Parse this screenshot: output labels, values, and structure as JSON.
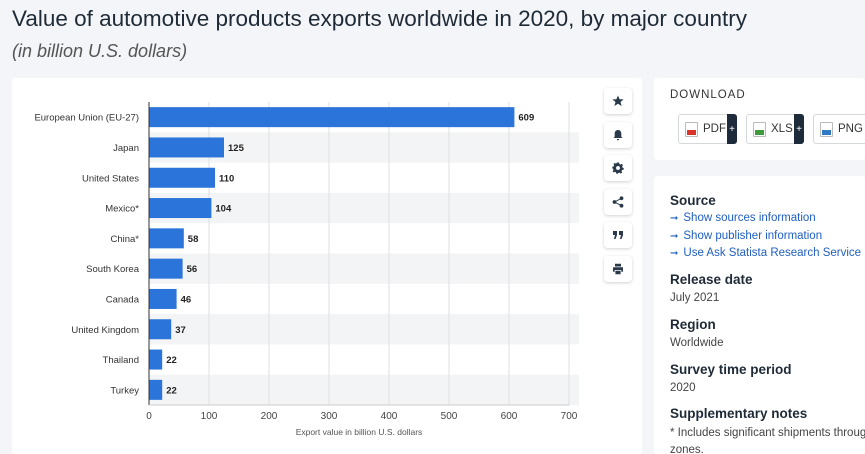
{
  "header": {
    "title": "Value of automotive products exports worldwide in 2020, by major country",
    "subtitle": "(in billion U.S. dollars)"
  },
  "chart_data": {
    "type": "bar",
    "orientation": "horizontal",
    "categories": [
      "European Union (EU-27)",
      "Japan",
      "United States",
      "Mexico*",
      "China*",
      "South Korea",
      "Canada",
      "United Kingdom",
      "Thailand",
      "Turkey"
    ],
    "values": [
      609,
      125,
      110,
      104,
      58,
      56,
      46,
      37,
      22,
      22
    ],
    "xlabel": "Export value in billion U.S. dollars",
    "ylabel": "",
    "xlim": [
      0,
      700
    ],
    "xticks": [
      0,
      100,
      200,
      300,
      400,
      500,
      600,
      700
    ],
    "grid": true,
    "bar_color": "#2b74d9"
  },
  "toolbar": {
    "buttons": [
      {
        "name": "favorite-button",
        "icon": "star-icon"
      },
      {
        "name": "notification-button",
        "icon": "bell-icon"
      },
      {
        "name": "settings-button",
        "icon": "gear-icon"
      },
      {
        "name": "share-button",
        "icon": "share-icon"
      },
      {
        "name": "cite-button",
        "icon": "quote-icon"
      },
      {
        "name": "print-button",
        "icon": "printer-icon"
      }
    ]
  },
  "download": {
    "title": "DOWNLOAD",
    "pdf_label": "PDF",
    "xls_label": "XLS",
    "png_label": "PNG",
    "plus": "+",
    "pdf_color": "#d9342b",
    "xls_color": "#3f9b3a",
    "png_color": "#2f78c4"
  },
  "info": {
    "source_heading": "Source",
    "links": [
      "Show sources information",
      "Show publisher information",
      "Use Ask Statista Research Service"
    ],
    "release_heading": "Release date",
    "release_value": "July 2021",
    "region_heading": "Region",
    "region_value": "Worldwide",
    "survey_heading": "Survey time period",
    "survey_value": "2020",
    "notes_heading": "Supplementary notes",
    "notes_line1": "* Includes significant shipments throug",
    "notes_line2": "zones."
  }
}
